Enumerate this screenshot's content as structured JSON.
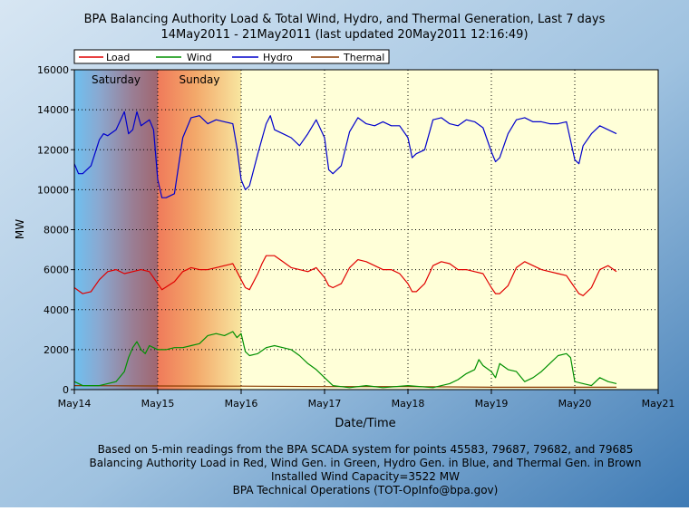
{
  "chart_data": {
    "type": "line",
    "title": "BPA Balancing Authority Load & Total Wind, Hydro, and Thermal Generation, Last 7 days",
    "subtitle": "14May2011 - 21May2011 (last updated 20May2011 12:16:49)",
    "xlabel": "Date/Time",
    "ylabel": "MW",
    "ylim": [
      0,
      16000
    ],
    "xlim": [
      0,
      7
    ],
    "grid": true,
    "legend_position": "top-left",
    "x_ticks": [
      {
        "x": 0,
        "label": "May14"
      },
      {
        "x": 1,
        "label": "May15"
      },
      {
        "x": 2,
        "label": "May16"
      },
      {
        "x": 3,
        "label": "May17"
      },
      {
        "x": 4,
        "label": "May18"
      },
      {
        "x": 5,
        "label": "May19"
      },
      {
        "x": 6,
        "label": "May20"
      },
      {
        "x": 7,
        "label": "May21"
      }
    ],
    "y_ticks": [
      {
        "y": 0,
        "label": "0"
      },
      {
        "y": 2000,
        "label": "2000"
      },
      {
        "y": 4000,
        "label": "4000"
      },
      {
        "y": 6000,
        "label": "6000"
      },
      {
        "y": 8000,
        "label": "8000"
      },
      {
        "y": 10000,
        "label": "10000"
      },
      {
        "y": 12000,
        "label": "12000"
      },
      {
        "y": 14000,
        "label": "14000"
      },
      {
        "y": 16000,
        "label": "16000"
      }
    ],
    "weekend_bands": [
      {
        "label": "Saturday",
        "x0": 0,
        "x1": 1
      },
      {
        "label": "Sunday",
        "x0": 1,
        "x1": 2
      }
    ],
    "series": [
      {
        "name": "Load",
        "color": "#e00000",
        "x": [
          0,
          0.1,
          0.2,
          0.3,
          0.4,
          0.5,
          0.6,
          0.7,
          0.8,
          0.9,
          1.0,
          1.05,
          1.2,
          1.3,
          1.4,
          1.5,
          1.6,
          1.7,
          1.8,
          1.9,
          2.0,
          2.05,
          2.1,
          2.2,
          2.25,
          2.3,
          2.4,
          2.5,
          2.6,
          2.7,
          2.8,
          2.9,
          3.0,
          3.05,
          3.1,
          3.2,
          3.3,
          3.4,
          3.5,
          3.6,
          3.7,
          3.8,
          3.9,
          4.0,
          4.05,
          4.1,
          4.2,
          4.3,
          4.4,
          4.5,
          4.6,
          4.7,
          4.8,
          4.9,
          5.0,
          5.05,
          5.1,
          5.2,
          5.3,
          5.4,
          5.5,
          5.6,
          5.7,
          5.8,
          5.9,
          6.0,
          6.05,
          6.1,
          6.2,
          6.3,
          6.4,
          6.5
        ],
        "y": [
          5100,
          4800,
          4900,
          5500,
          5900,
          6000,
          5800,
          5900,
          6000,
          5900,
          5300,
          5000,
          5400,
          5900,
          6100,
          6000,
          6000,
          6100,
          6200,
          6300,
          5500,
          5100,
          5000,
          5800,
          6300,
          6700,
          6700,
          6400,
          6100,
          6000,
          5900,
          6100,
          5600,
          5200,
          5100,
          5300,
          6100,
          6500,
          6400,
          6200,
          6000,
          6000,
          5800,
          5300,
          4900,
          4900,
          5300,
          6200,
          6400,
          6300,
          6000,
          6000,
          5900,
          5800,
          5100,
          4800,
          4800,
          5200,
          6100,
          6400,
          6200,
          6000,
          5900,
          5800,
          5700,
          5100,
          4800,
          4700,
          5100,
          6000,
          6200,
          5900
        ]
      },
      {
        "name": "Wind",
        "color": "#009000",
        "x": [
          0,
          0.1,
          0.2,
          0.3,
          0.4,
          0.5,
          0.6,
          0.65,
          0.7,
          0.75,
          0.8,
          0.85,
          0.9,
          1.0,
          1.1,
          1.2,
          1.3,
          1.4,
          1.5,
          1.6,
          1.7,
          1.8,
          1.9,
          1.95,
          2.0,
          2.05,
          2.1,
          2.2,
          2.3,
          2.4,
          2.5,
          2.6,
          2.7,
          2.8,
          2.9,
          3.0,
          3.1,
          3.2,
          3.3,
          3.5,
          3.7,
          4.0,
          4.3,
          4.5,
          4.6,
          4.7,
          4.8,
          4.85,
          4.9,
          5.0,
          5.05,
          5.1,
          5.2,
          5.3,
          5.4,
          5.5,
          5.6,
          5.7,
          5.8,
          5.9,
          5.95,
          6.0,
          6.1,
          6.2,
          6.3,
          6.4,
          6.5
        ],
        "y": [
          400,
          200,
          200,
          200,
          300,
          400,
          900,
          1600,
          2100,
          2400,
          2000,
          1800,
          2200,
          2000,
          2000,
          2100,
          2100,
          2200,
          2300,
          2700,
          2800,
          2700,
          2900,
          2600,
          2800,
          1900,
          1700,
          1800,
          2100,
          2200,
          2100,
          2000,
          1700,
          1300,
          1000,
          600,
          200,
          150,
          100,
          200,
          100,
          200,
          100,
          300,
          500,
          800,
          1000,
          1500,
          1200,
          900,
          600,
          1300,
          1000,
          900,
          400,
          600,
          900,
          1300,
          1700,
          1800,
          1600,
          400,
          300,
          200,
          600,
          400,
          300
        ]
      },
      {
        "name": "Hydro",
        "color": "#0000cc",
        "x": [
          0,
          0.05,
          0.1,
          0.15,
          0.2,
          0.3,
          0.35,
          0.4,
          0.5,
          0.6,
          0.65,
          0.7,
          0.75,
          0.8,
          0.9,
          0.95,
          1.0,
          1.05,
          1.1,
          1.2,
          1.3,
          1.4,
          1.5,
          1.6,
          1.7,
          1.8,
          1.9,
          1.95,
          2.0,
          2.05,
          2.1,
          2.2,
          2.3,
          2.35,
          2.4,
          2.5,
          2.6,
          2.7,
          2.8,
          2.9,
          3.0,
          3.05,
          3.1,
          3.2,
          3.3,
          3.4,
          3.5,
          3.6,
          3.7,
          3.8,
          3.9,
          4.0,
          4.05,
          4.1,
          4.2,
          4.3,
          4.4,
          4.5,
          4.6,
          4.7,
          4.8,
          4.9,
          5.0,
          5.05,
          5.1,
          5.2,
          5.3,
          5.4,
          5.5,
          5.6,
          5.7,
          5.8,
          5.9,
          6.0,
          6.05,
          6.1,
          6.2,
          6.3,
          6.4,
          6.5
        ],
        "y": [
          11300,
          10800,
          10800,
          11000,
          11200,
          12500,
          12800,
          12700,
          13000,
          13900,
          12800,
          13000,
          13900,
          13200,
          13500,
          13000,
          10500,
          9600,
          9600,
          9800,
          12600,
          13600,
          13700,
          13300,
          13500,
          13400,
          13300,
          12100,
          10500,
          10000,
          10200,
          11800,
          13300,
          13700,
          13000,
          12800,
          12600,
          12200,
          12800,
          13500,
          12600,
          11000,
          10800,
          11200,
          12900,
          13600,
          13300,
          13200,
          13400,
          13200,
          13200,
          12600,
          11600,
          11800,
          12000,
          13500,
          13600,
          13300,
          13200,
          13500,
          13400,
          13100,
          11900,
          11400,
          11600,
          12800,
          13500,
          13600,
          13400,
          13400,
          13300,
          13300,
          13400,
          11500,
          11300,
          12200,
          12800,
          13200,
          13000,
          12800
        ]
      },
      {
        "name": "Thermal",
        "color": "#8b3a00",
        "x": [
          0,
          1,
          2,
          3,
          4,
          5,
          6,
          6.5
        ],
        "y": [
          200,
          180,
          170,
          150,
          150,
          120,
          120,
          120
        ]
      }
    ],
    "footer": [
      "Based on 5-min readings from the BPA SCADA system for points 45583, 79687, 79682, and 79685",
      "Balancing Authority Load in Red, Wind Gen. in Green, Hydro Gen. in Blue, and Thermal Gen. in Brown",
      "Installed Wind Capacity=3522 MW",
      "BPA Technical Operations (TOT-OpInfo@bpa.gov)"
    ]
  }
}
